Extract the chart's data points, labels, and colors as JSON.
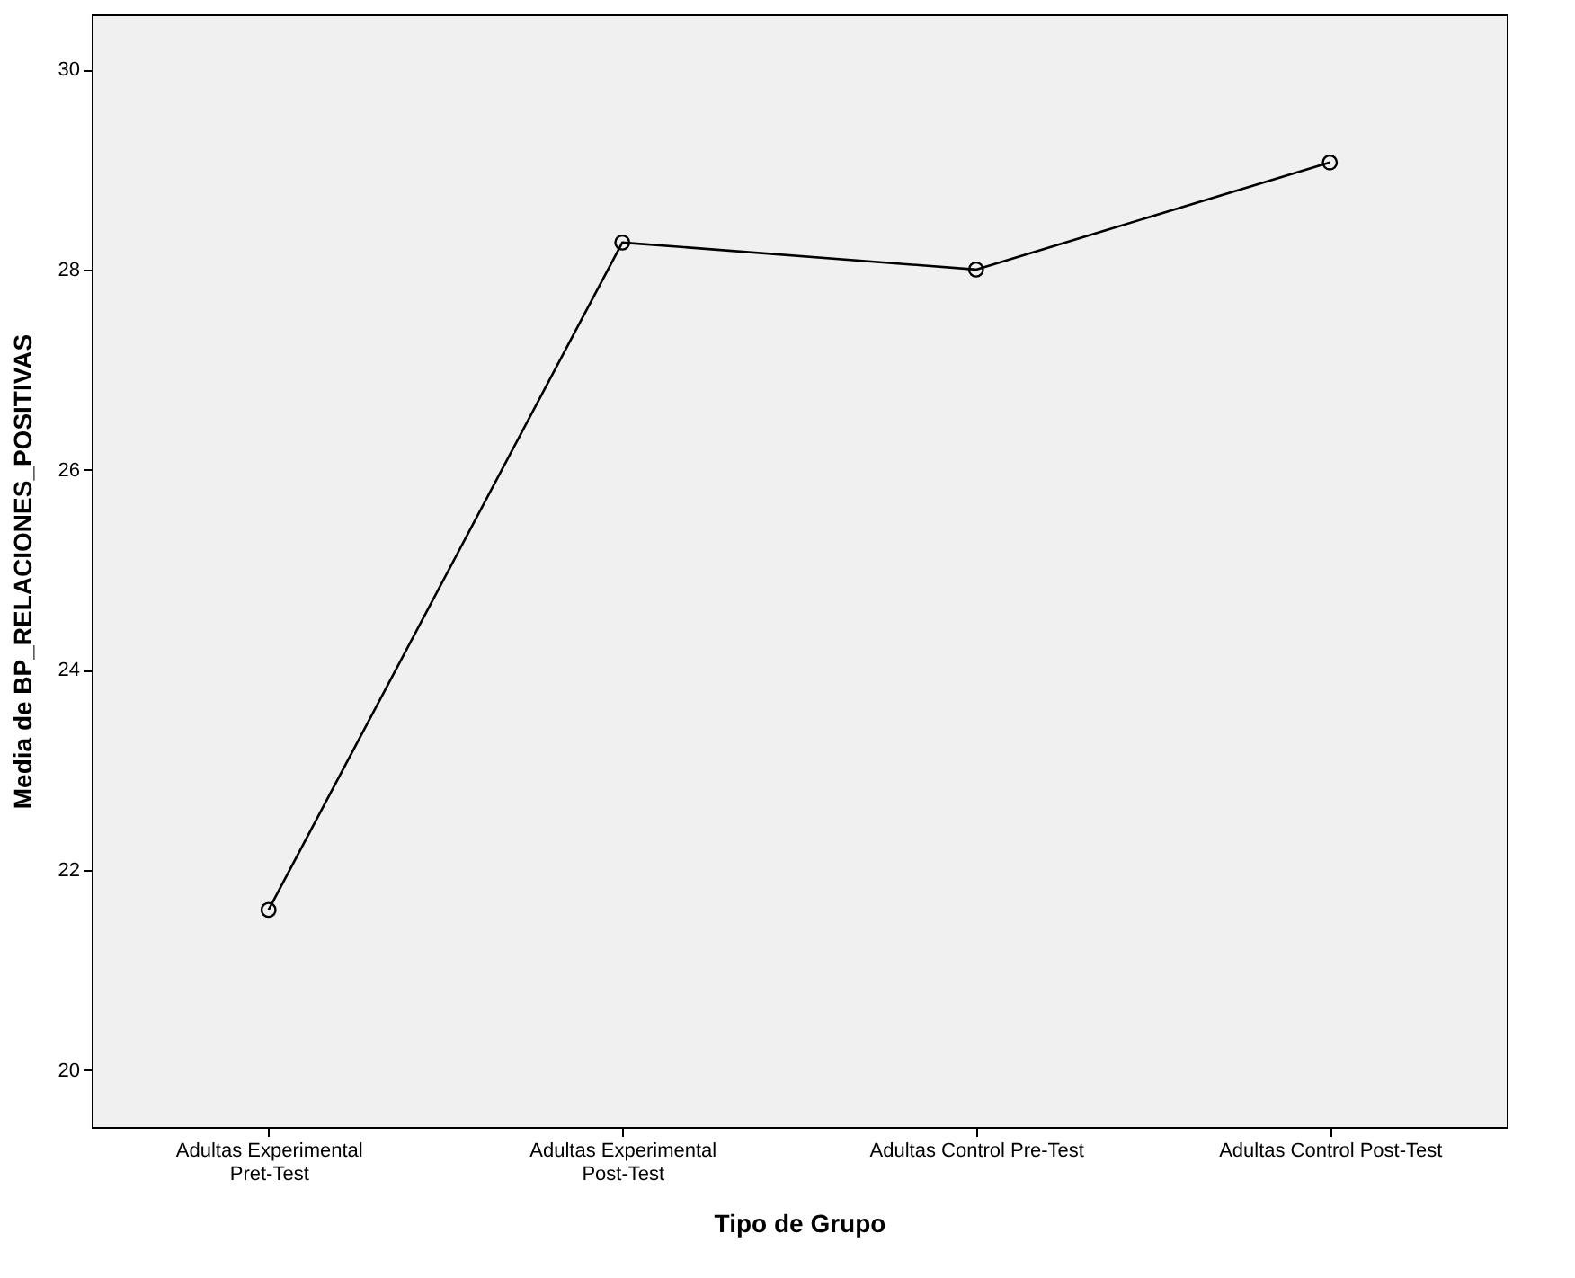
{
  "chart_data": {
    "type": "line",
    "xlabel": "Tipo de Grupo",
    "ylabel": "Media de BP_RELACIONES_POSITIVAS",
    "categories": [
      "Adultas Experimental Pret-Test",
      "Adultas Experimental Post-Test",
      "Adultas Control Pre-Test",
      "Adultas Control Post-Test"
    ],
    "series": [
      {
        "color": "#000000",
        "values": [
          21.6,
          28.27,
          28.0,
          29.07
        ]
      }
    ],
    "ylim": [
      19.43,
      30.55
    ],
    "yticks": [
      20,
      22,
      24,
      26,
      28,
      30
    ],
    "marker": "circle",
    "line_style": "solid",
    "grid": false,
    "legend": false
  }
}
